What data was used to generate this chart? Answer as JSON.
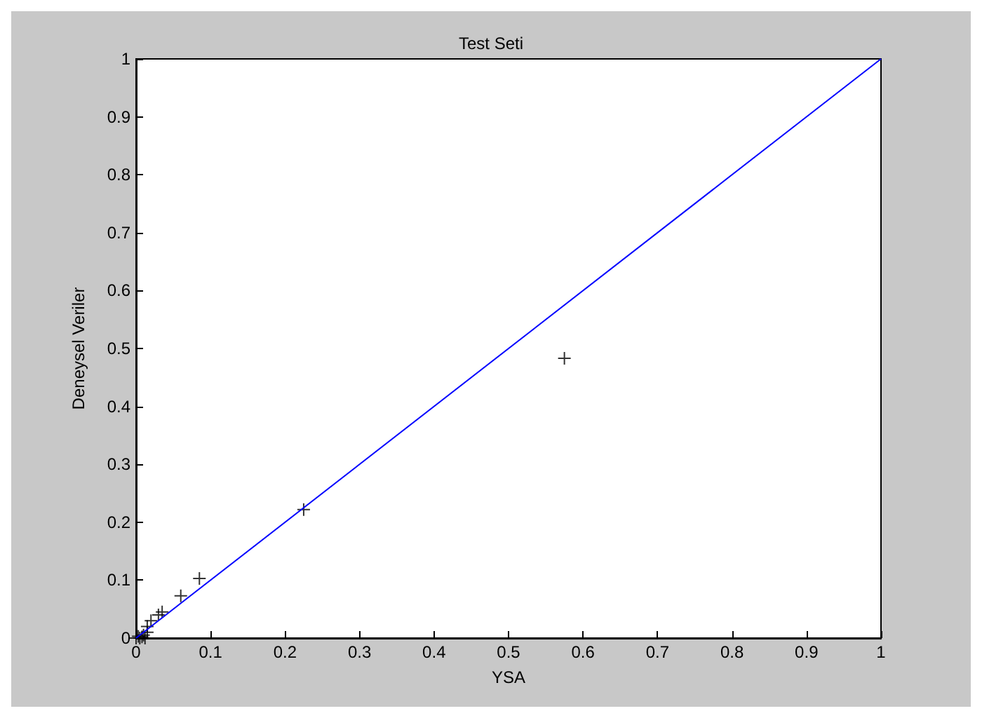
{
  "chart_data": {
    "type": "scatter",
    "title": "Test Seti",
    "xlabel": "YSA",
    "ylabel": "Deneysel Veriler",
    "xlim": [
      0,
      1
    ],
    "ylim": [
      0,
      1
    ],
    "xticks": [
      0,
      0.1,
      0.2,
      0.3,
      0.4,
      0.5,
      0.6,
      0.7,
      0.8,
      0.9,
      1
    ],
    "yticks": [
      0,
      0.1,
      0.2,
      0.3,
      0.4,
      0.5,
      0.6,
      0.7,
      0.8,
      0.9,
      1
    ],
    "grid": false,
    "marker": "cross",
    "series": [
      {
        "color": "#000000",
        "x": [
          0.575,
          0.225,
          0.085,
          0.06,
          0.035,
          0.03,
          0.02,
          0.015,
          0.015,
          0.01,
          0.005,
          0.008,
          0.0,
          0.012,
          0.003
        ],
        "values": [
          0.483,
          0.222,
          0.103,
          0.073,
          0.045,
          0.04,
          0.03,
          0.02,
          0.01,
          0.005,
          0.0,
          0.002,
          0.0,
          0.0,
          0.003
        ]
      },
      {
        "type": "line",
        "color": "#0000ff",
        "marker": "none",
        "x": [
          0,
          1
        ],
        "values": [
          0,
          1
        ]
      }
    ]
  }
}
